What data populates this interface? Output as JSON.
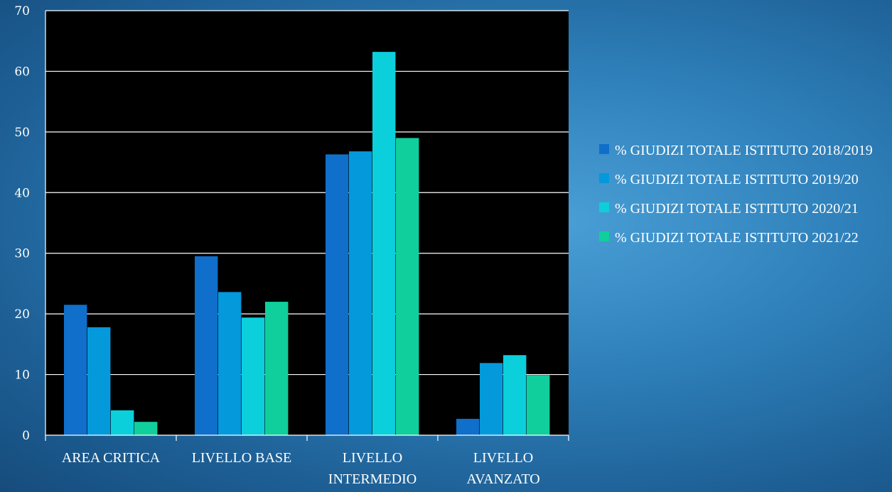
{
  "chart_data": {
    "type": "bar",
    "categories": [
      "AREA CRITICA",
      "LIVELLO BASE",
      "LIVELLO INTERMEDIO",
      "LIVELLO AVANZATO"
    ],
    "category_lines": [
      [
        "AREA CRITICA"
      ],
      [
        "LIVELLO BASE"
      ],
      [
        "LIVELLO",
        "INTERMEDIO"
      ],
      [
        "LIVELLO",
        "AVANZATO"
      ]
    ],
    "series": [
      {
        "name": "% GIUDIZI TOTALE ISTITUTO 2018/2019",
        "color": "#0f6fcb",
        "values": [
          21.5,
          29.5,
          46.3,
          2.7
        ]
      },
      {
        "name": "% GIUDIZI TOTALE ISTITUTO 2019/20",
        "color": "#0499db",
        "values": [
          17.8,
          23.6,
          46.8,
          11.9
        ]
      },
      {
        "name": "% GIUDIZI TOTALE ISTITUTO 2020/21",
        "color": "#0ccfdc",
        "values": [
          4.1,
          19.4,
          63.2,
          13.2
        ]
      },
      {
        "name": "% GIUDIZI TOTALE ISTITUTO 2021/22",
        "color": "#10cf9d",
        "values": [
          2.2,
          22.0,
          49.0,
          9.9
        ]
      }
    ],
    "ylim": [
      0,
      70
    ],
    "yticks": [
      0,
      10,
      20,
      30,
      40,
      50,
      60,
      70
    ],
    "grid": true,
    "plot_background": "#000000",
    "legend_position": "right",
    "title": "",
    "xlabel": "",
    "ylabel": ""
  }
}
